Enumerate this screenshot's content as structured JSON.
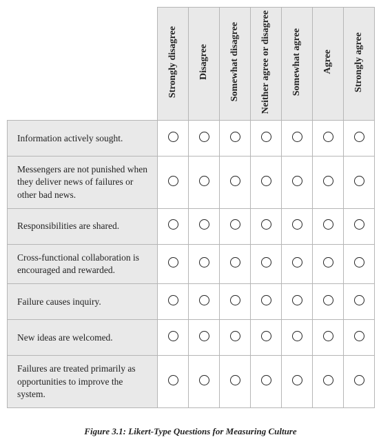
{
  "scale": [
    "Strongly disagree",
    "Disagree",
    "Somewhat disagree",
    "Neither agree or disagree",
    "Somewhat agree",
    "Agree",
    "Strongly agree"
  ],
  "questions": [
    "Information actively sought.",
    "Messengers are not punished when they deliver news of failures or other bad news.",
    "Responsibilities are shared.",
    "Cross-functional collaboration is encouraged and rewarded.",
    "Failure causes inquiry.",
    "New ideas are welcomed.",
    "Failures are treated primarily as opportunities to improve the system."
  ],
  "caption": "Figure 3.1: Likert-Type Questions for Measuring Culture",
  "colors": {
    "header_bg": "#e9e9e9",
    "border": "#b5b5b5",
    "cell_bg": "#ffffff",
    "text": "#222222"
  }
}
